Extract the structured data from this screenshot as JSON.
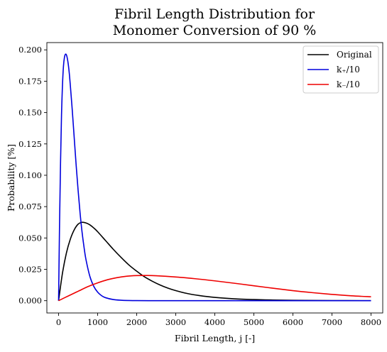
{
  "chart_data": {
    "type": "line",
    "title_lines": [
      "Fibril Length Distribution for",
      "Monomer Conversion of 90 %"
    ],
    "xlabel": "Fibril Length, j [-]",
    "ylabel": "Probability [%]",
    "xlim": [
      -300,
      8300
    ],
    "ylim": [
      -0.0098,
      0.2058
    ],
    "xticks": [
      0,
      1000,
      2000,
      3000,
      4000,
      5000,
      6000,
      7000,
      8000
    ],
    "yticks": [
      0.0,
      0.025,
      0.05,
      0.075,
      0.1,
      0.125,
      0.15,
      0.175,
      0.2
    ],
    "xtick_labels": [
      "0",
      "1000",
      "2000",
      "3000",
      "4000",
      "5000",
      "6000",
      "7000",
      "8000"
    ],
    "ytick_labels": [
      "0.000",
      "0.025",
      "0.050",
      "0.075",
      "0.100",
      "0.125",
      "0.150",
      "0.175",
      "0.200"
    ],
    "legend_position": "top-right",
    "series": [
      {
        "name": "Original",
        "color": "#000000",
        "x": [
          0,
          100,
          200,
          300,
          400,
          500,
          600,
          700,
          800,
          900,
          1000,
          1200,
          1400,
          1600,
          1800,
          2000,
          2200,
          2400,
          2600,
          2800,
          3000,
          3300,
          3600,
          4000,
          4500,
          5000,
          5500,
          6000,
          7000,
          8000
        ],
        "y": [
          0.0,
          0.022,
          0.038,
          0.049,
          0.0565,
          0.061,
          0.0625,
          0.062,
          0.0605,
          0.058,
          0.055,
          0.048,
          0.041,
          0.0345,
          0.0285,
          0.0235,
          0.019,
          0.0155,
          0.0125,
          0.01,
          0.008,
          0.0057,
          0.0041,
          0.0026,
          0.0015,
          0.0009,
          0.0005,
          0.0003,
          0.0001,
          0.0
        ]
      },
      {
        "name": "k₊/10",
        "color": "#0000dd",
        "x": [
          0,
          25,
          50,
          75,
          100,
          125,
          150,
          175,
          200,
          225,
          250,
          275,
          300,
          350,
          400,
          450,
          500,
          550,
          600,
          650,
          700,
          800,
          900,
          1000,
          1100,
          1200,
          1400,
          1600,
          1800,
          2000,
          2500,
          3000,
          4000,
          5000,
          6000,
          7000,
          8000
        ],
        "y": [
          0.0,
          0.062,
          0.11,
          0.148,
          0.172,
          0.187,
          0.194,
          0.1965,
          0.196,
          0.193,
          0.188,
          0.181,
          0.172,
          0.152,
          0.13,
          0.108,
          0.088,
          0.07,
          0.055,
          0.043,
          0.033,
          0.0195,
          0.0115,
          0.0068,
          0.004,
          0.0024,
          0.0009,
          0.00035,
          0.00014,
          6e-05,
          1e-05,
          0.0,
          0.0,
          0.0,
          0.0,
          0.0,
          0.0
        ]
      },
      {
        "name": "k₋/10",
        "color": "#ee0000",
        "x": [
          0,
          250,
          500,
          750,
          1000,
          1250,
          1500,
          1750,
          2000,
          2250,
          2500,
          3000,
          3500,
          4000,
          4500,
          5000,
          5500,
          6000,
          6500,
          7000,
          7500,
          8000
        ],
        "y": [
          0.0,
          0.0038,
          0.0075,
          0.0112,
          0.0142,
          0.0167,
          0.0184,
          0.0195,
          0.02,
          0.0201,
          0.0199,
          0.0189,
          0.0175,
          0.0158,
          0.0139,
          0.0119,
          0.0099,
          0.008,
          0.0064,
          0.005,
          0.0039,
          0.0031
        ]
      }
    ]
  }
}
